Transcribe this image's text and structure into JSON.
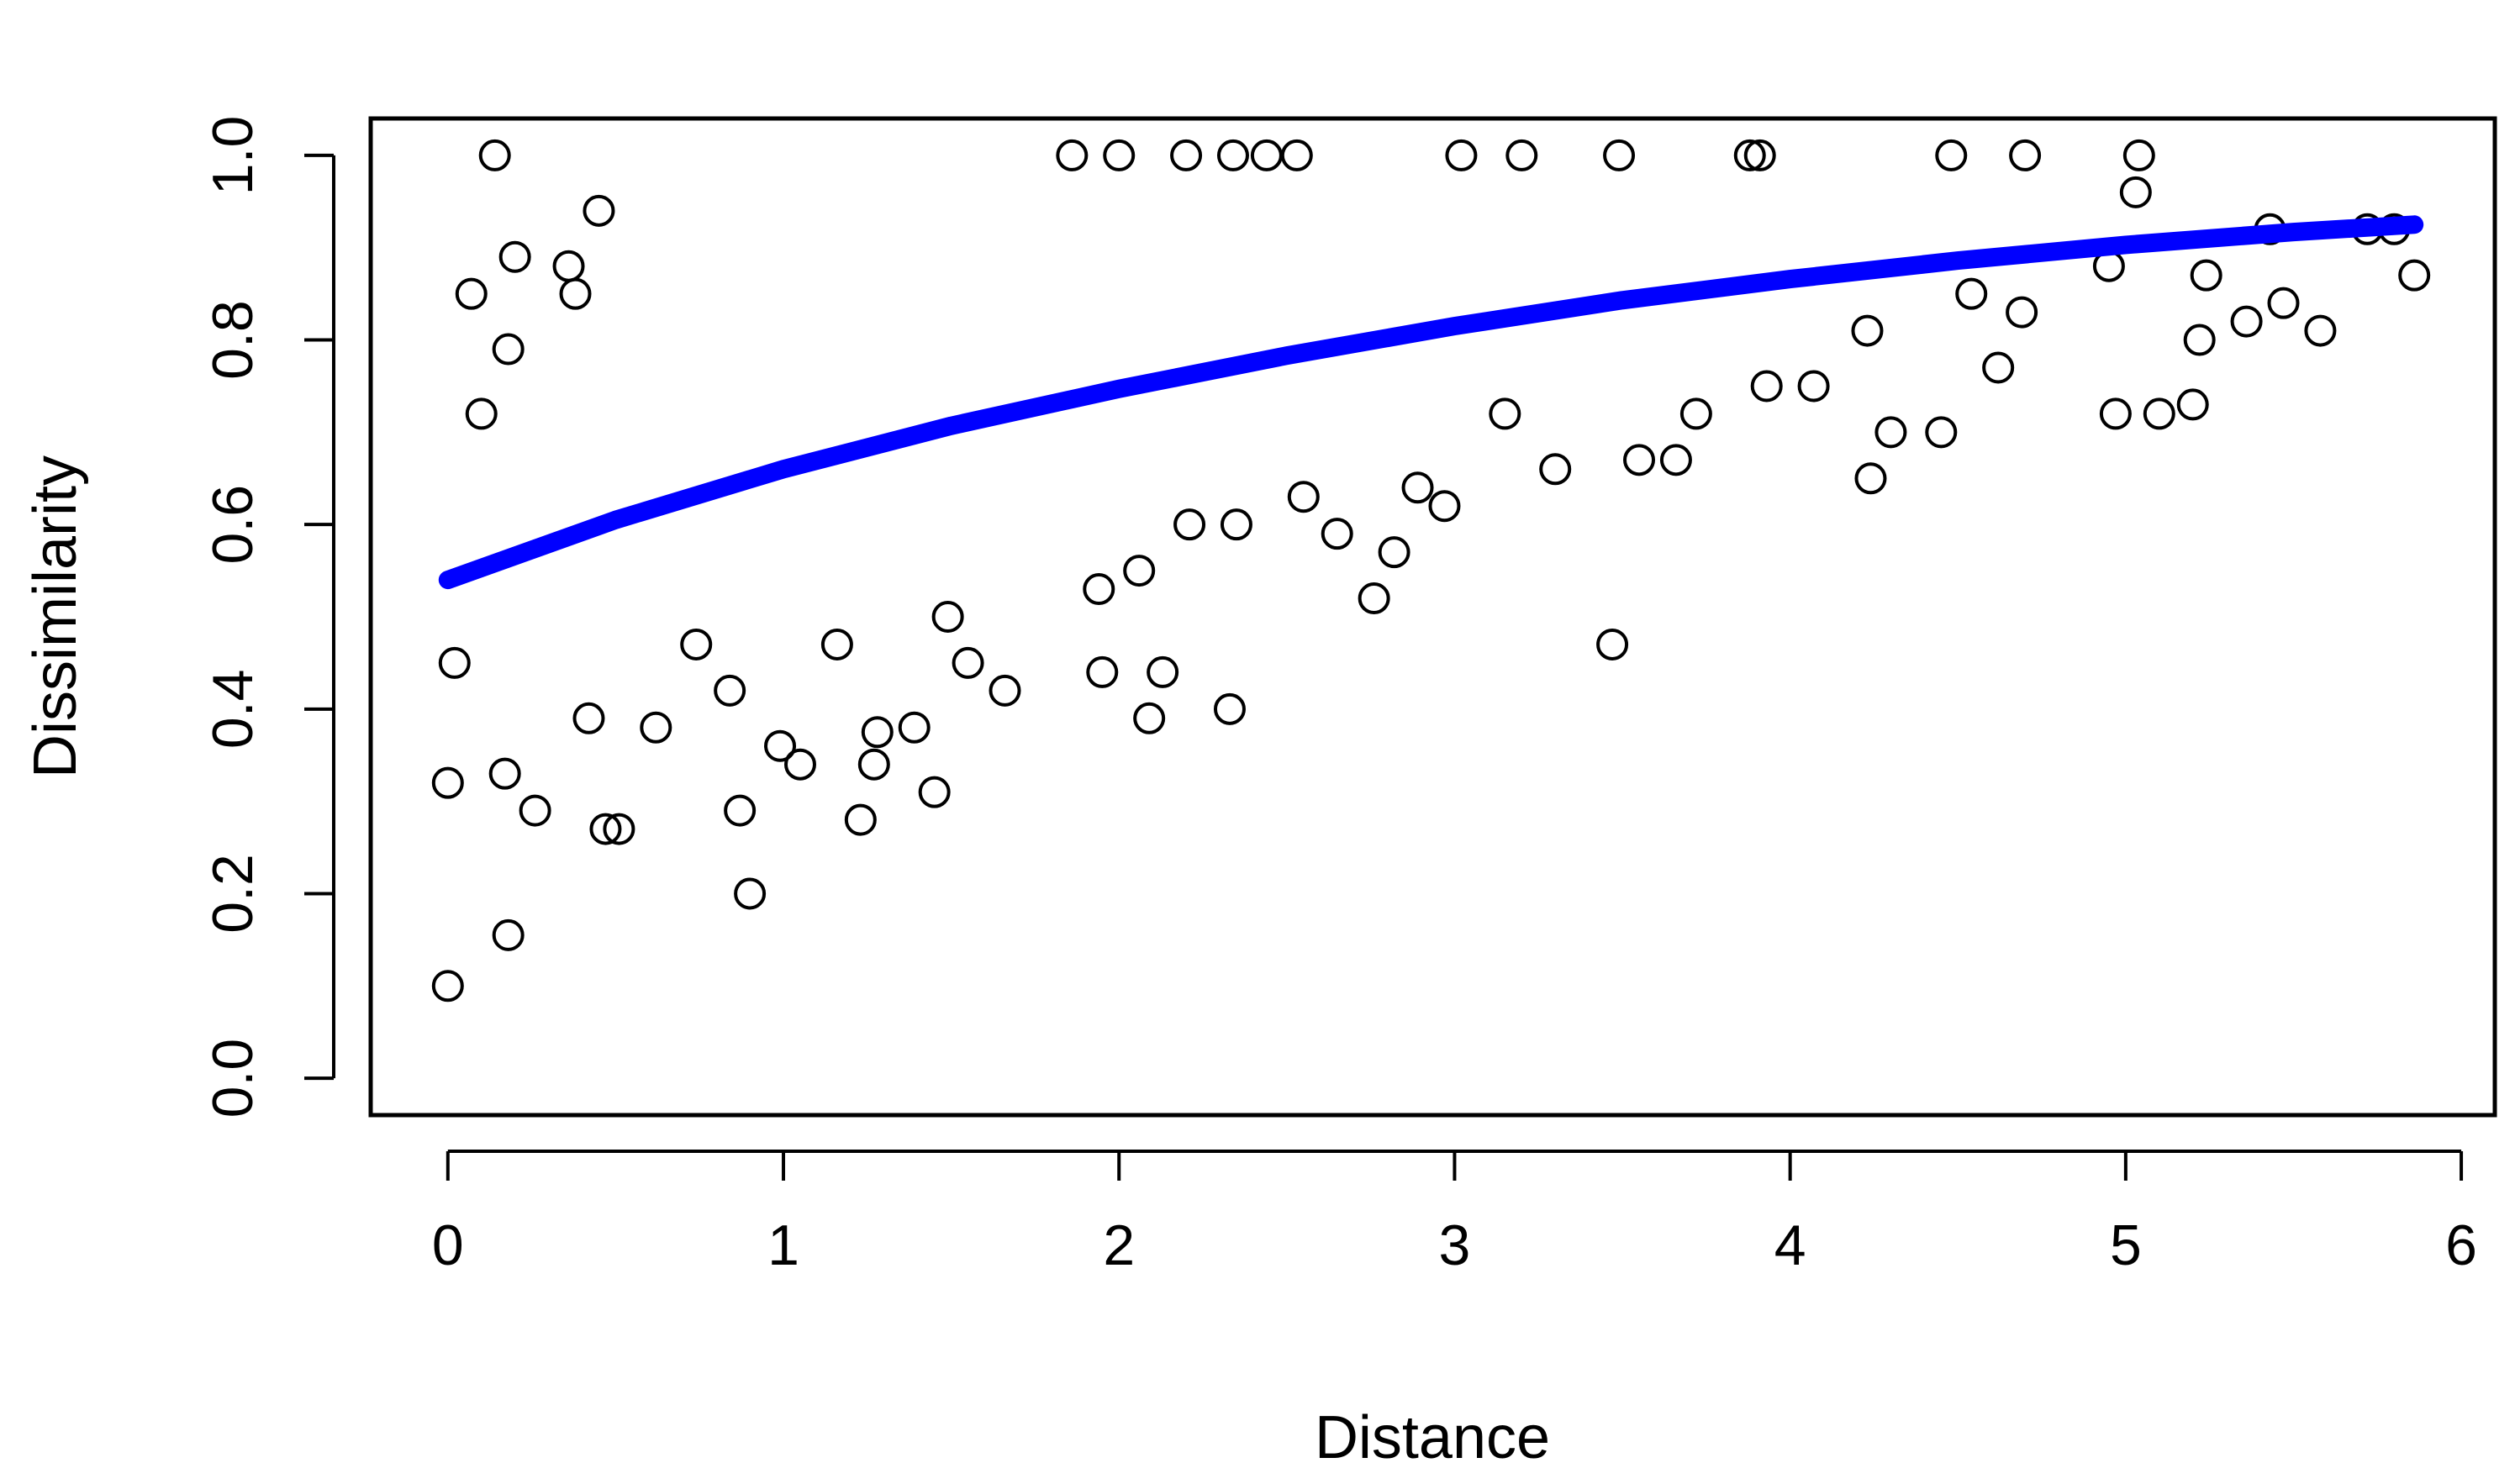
{
  "chart_data": {
    "type": "scatter",
    "title": "",
    "xlabel": "Distance",
    "ylabel": "Dissimilarity",
    "xlim": [
      -0.23,
      6.1
    ],
    "ylim": [
      -0.04,
      1.04
    ],
    "x_ticks": [
      0,
      1,
      2,
      3,
      4,
      5,
      6
    ],
    "y_ticks": [
      0.0,
      0.2,
      0.4,
      0.6,
      0.8,
      1.0
    ],
    "x_tick_labels": [
      "0",
      "1",
      "2",
      "3",
      "4",
      "5",
      "6"
    ],
    "y_tick_labels": [
      "0.0",
      "0.2",
      "0.4",
      "0.6",
      "0.8",
      "1.0"
    ],
    "grid": false,
    "legend": "none",
    "point_style": "open circle",
    "point_color": "#000000",
    "fit_color": "#0000ff",
    "series": [
      {
        "type": "scatter",
        "points": [
          [
            0.0,
            0.1
          ],
          [
            0.18,
            0.155
          ],
          [
            0.0,
            0.32
          ],
          [
            0.26,
            0.29
          ],
          [
            0.47,
            0.27
          ],
          [
            0.51,
            0.27
          ],
          [
            0.9,
            0.2
          ],
          [
            0.87,
            0.29
          ],
          [
            1.23,
            0.28
          ],
          [
            1.27,
            0.34
          ],
          [
            1.45,
            0.31
          ],
          [
            0.99,
            0.36
          ],
          [
            1.28,
            0.375
          ],
          [
            1.39,
            0.38
          ],
          [
            2.09,
            0.39
          ],
          [
            2.33,
            0.4
          ],
          [
            1.66,
            0.42
          ],
          [
            1.55,
            0.45
          ],
          [
            1.95,
            0.44
          ],
          [
            2.13,
            0.44
          ],
          [
            3.47,
            0.47
          ],
          [
            2.76,
            0.52
          ],
          [
            2.82,
            0.57
          ],
          [
            2.65,
            0.59
          ],
          [
            2.89,
            0.64
          ],
          [
            2.97,
            0.62
          ],
          [
            2.35,
            0.6
          ],
          [
            2.21,
            0.6
          ],
          [
            3.3,
            0.66
          ],
          [
            3.55,
            0.67
          ],
          [
            3.66,
            0.67
          ],
          [
            4.24,
            0.65
          ],
          [
            3.93,
            0.75
          ],
          [
            4.07,
            0.75
          ],
          [
            4.3,
            0.7
          ],
          [
            4.45,
            0.7
          ],
          [
            4.62,
            0.77
          ],
          [
            4.97,
            0.72
          ],
          [
            5.1,
            0.72
          ],
          [
            5.2,
            0.73
          ],
          [
            5.22,
            0.8
          ],
          [
            5.36,
            0.82
          ],
          [
            5.47,
            0.84
          ],
          [
            5.58,
            0.81
          ],
          [
            5.86,
            0.87
          ],
          [
            5.03,
            0.96
          ],
          [
            5.04,
            1.0
          ],
          [
            4.48,
            1.0
          ],
          [
            4.7,
            1.0
          ],
          [
            3.88,
            1.0
          ],
          [
            3.91,
            1.0
          ],
          [
            3.49,
            1.0
          ],
          [
            3.02,
            1.0
          ],
          [
            3.2,
            1.0
          ],
          [
            2.53,
            1.0
          ],
          [
            2.44,
            1.0
          ],
          [
            2.34,
            1.0
          ],
          [
            2.2,
            1.0
          ],
          [
            2.0,
            1.0
          ],
          [
            1.86,
            1.0
          ],
          [
            0.14,
            1.0
          ],
          [
            0.45,
            0.94
          ],
          [
            0.2,
            0.89
          ],
          [
            0.07,
            0.85
          ],
          [
            0.38,
            0.85
          ],
          [
            0.36,
            0.88
          ],
          [
            0.18,
            0.79
          ],
          [
            0.1,
            0.72
          ],
          [
            0.02,
            0.45
          ],
          [
            0.17,
            0.33
          ],
          [
            0.42,
            0.39
          ],
          [
            0.84,
            0.42
          ],
          [
            1.05,
            0.34
          ],
          [
            1.49,
            0.5
          ],
          [
            0.62,
            0.38
          ],
          [
            0.74,
            0.47
          ],
          [
            1.16,
            0.47
          ],
          [
            1.94,
            0.53
          ],
          [
            2.06,
            0.55
          ],
          [
            2.55,
            0.63
          ],
          [
            3.15,
            0.72
          ],
          [
            3.72,
            0.72
          ],
          [
            4.23,
            0.81
          ],
          [
            4.54,
            0.85
          ],
          [
            4.69,
            0.83
          ],
          [
            4.95,
            0.88
          ],
          [
            5.24,
            0.87
          ],
          [
            5.43,
            0.92
          ],
          [
            5.72,
            0.92
          ],
          [
            5.8,
            0.92
          ]
        ]
      },
      {
        "type": "line",
        "name": "",
        "x": [
          0.0,
          0.5,
          1.0,
          1.5,
          2.0,
          2.5,
          3.0,
          3.5,
          4.0,
          4.5,
          5.0,
          5.5,
          5.86
        ],
        "y": [
          0.54,
          0.605,
          0.66,
          0.707,
          0.747,
          0.783,
          0.815,
          0.843,
          0.866,
          0.886,
          0.903,
          0.917,
          0.925
        ]
      }
    ]
  }
}
